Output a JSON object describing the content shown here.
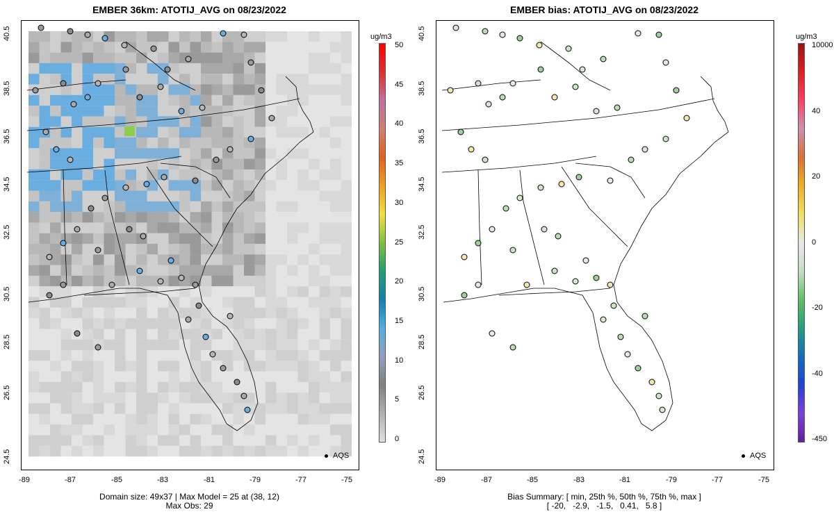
{
  "left_panel": {
    "title": "EMBER 36km: ATOTIJ_AVG on 08/23/2022",
    "caption_line1": "Domain size: 49x37 | Max Model = 25 at (38, 12)",
    "caption_line2": "Max Obs: 29",
    "legend_label": "AQS",
    "colorbar": {
      "unit": "ug/m3",
      "ticks": [
        "50",
        "45",
        "40",
        "35",
        "30",
        "25",
        "20",
        "15",
        "10",
        "5",
        "0"
      ],
      "colors": [
        "#ff0000",
        "#e03030",
        "#c070a0",
        "#d08070",
        "#e06020",
        "#f0a020",
        "#f0e040",
        "#80c040",
        "#20a070",
        "#1080b0",
        "#50b0e0",
        "#90a0c0",
        "#808080",
        "#b0b0b0",
        "#e0e0e0"
      ]
    }
  },
  "right_panel": {
    "title": "EMBER bias: ATOTIJ_AVG on 08/23/2022",
    "caption_line1": "Bias Summary: [ min, 25th %, 50th %, 75th %, max ]",
    "caption_line2": "[ -20,   -2.9,   -1.5,   0.41,   5.8 ]",
    "legend_label": "AQS",
    "colorbar": {
      "unit": "ug/m3",
      "ticks": [
        "10000",
        "40",
        "20",
        "0",
        "-20",
        "-40",
        "-450"
      ],
      "colors": [
        "#a01010",
        "#e02020",
        "#ff4060",
        "#d090b0",
        "#e07030",
        "#f0b020",
        "#f0e060",
        "#e8e8e8",
        "#c8dcc8",
        "#60c060",
        "#20a080",
        "#1070c0",
        "#2040e0",
        "#8040e0",
        "#6020a0"
      ]
    }
  },
  "axes": {
    "y_ticks": [
      "40.5",
      "38.5",
      "36.5",
      "34.5",
      "32.5",
      "30.5",
      "28.5",
      "26.5",
      "24.5"
    ],
    "x_ticks": [
      "-89",
      "-87",
      "-85",
      "-83",
      "-81",
      "-79",
      "-77",
      "-75"
    ]
  }
}
